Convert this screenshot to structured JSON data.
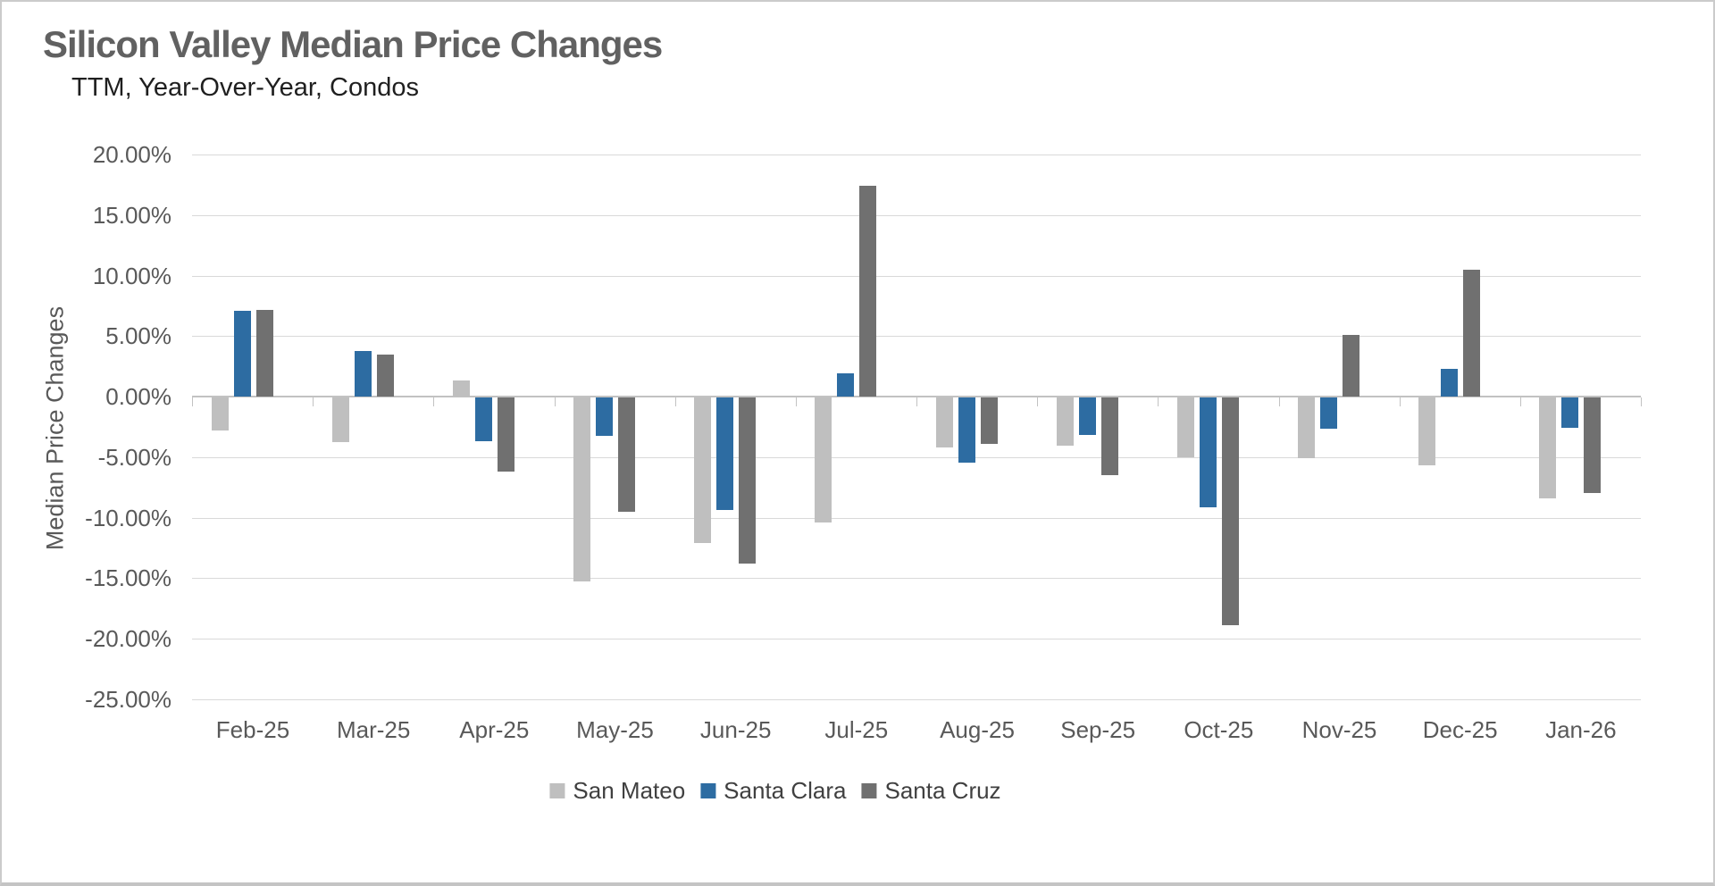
{
  "chart": {
    "title": "Silicon Valley Median Price Changes",
    "subtitle": "TTM, Year-Over-Year, Condos",
    "y_axis_title": "Median Price Changes"
  },
  "chart_data": {
    "type": "bar",
    "title": "Silicon Valley Median Price Changes",
    "subtitle": "TTM, Year-Over-Year, Condos",
    "xlabel": "",
    "ylabel": "Median Price Changes",
    "categories": [
      "Feb-25",
      "Mar-25",
      "Apr-25",
      "May-25",
      "Jun-25",
      "Jul-25",
      "Aug-25",
      "Sep-25",
      "Oct-25",
      "Nov-25",
      "Dec-25",
      "Jan-26"
    ],
    "series": [
      {
        "name": "San Mateo",
        "color": "#BFBFBF",
        "values": [
          -2.7,
          -3.7,
          1.3,
          -15.2,
          -12.0,
          -10.3,
          -4.1,
          -4.0,
          -4.9,
          -5.0,
          -5.6,
          -8.3
        ]
      },
      {
        "name": "Santa Clara",
        "color": "#2D6CA2",
        "values": [
          7.1,
          3.8,
          -3.6,
          -3.2,
          -9.3,
          1.9,
          -5.4,
          -3.1,
          -9.1,
          -2.6,
          2.3,
          -2.5
        ]
      },
      {
        "name": "Santa Cruz",
        "color": "#707070",
        "values": [
          7.2,
          3.5,
          -6.1,
          -9.4,
          -13.7,
          17.4,
          -3.8,
          -6.4,
          -18.8,
          5.1,
          10.5,
          -7.9
        ]
      }
    ],
    "ylim": [
      -25,
      20
    ],
    "ytick_step": 5,
    "yticks": [
      {
        "v": 20,
        "label": "20.00%"
      },
      {
        "v": 15,
        "label": "15.00%"
      },
      {
        "v": 10,
        "label": "10.00%"
      },
      {
        "v": 5,
        "label": "5.00%"
      },
      {
        "v": 0,
        "label": "0.00%"
      },
      {
        "v": -5,
        "label": "-5.00%"
      },
      {
        "v": -10,
        "label": "-10.00%"
      },
      {
        "v": -15,
        "label": "-15.00%"
      },
      {
        "v": -20,
        "label": "-20.00%"
      },
      {
        "v": -25,
        "label": "-25.00%"
      }
    ],
    "grid": true,
    "legend_position": "bottom",
    "value_format": "percent"
  }
}
